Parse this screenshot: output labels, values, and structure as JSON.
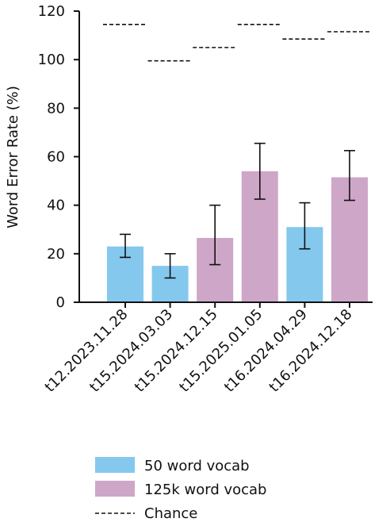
{
  "chart_data": {
    "type": "bar",
    "categories": [
      "t12.2023.11.28",
      "t15.2024.03.03",
      "t15.2024.12.15",
      "t15.2025.01.05",
      "t16.2024.04.29",
      "t16.2024.12.18"
    ],
    "values": [
      23,
      15,
      26.5,
      54,
      31,
      51.5
    ],
    "error_low": [
      18.5,
      10,
      15.5,
      42.5,
      22,
      42
    ],
    "error_high": [
      28,
      20,
      40,
      65.5,
      41,
      62.5
    ],
    "chance": [
      114.5,
      99.5,
      105,
      114.5,
      108.5,
      111.5
    ],
    "bar_series": [
      "50 word vocab",
      "50 word vocab",
      "125k word vocab",
      "125k word vocab",
      "50 word vocab",
      "125k word vocab"
    ],
    "series_colors": {
      "50 word vocab": "#85c8ee",
      "125k word vocab": "#cea6c8"
    },
    "ylabel": "Word Error Rate (%)",
    "xlabel": "",
    "title": "",
    "ylim": [
      0,
      120
    ],
    "yticks": [
      0,
      20,
      40,
      60,
      80,
      100,
      120
    ],
    "grid": false,
    "legend": {
      "placement": "bottom",
      "entries": [
        {
          "label": "50 word vocab",
          "kind": "patch",
          "color": "#85c8ee"
        },
        {
          "label": "125k word vocab",
          "kind": "patch",
          "color": "#cea6c8"
        },
        {
          "label": "Chance",
          "kind": "dashed-line",
          "color": "#111111"
        }
      ]
    }
  }
}
